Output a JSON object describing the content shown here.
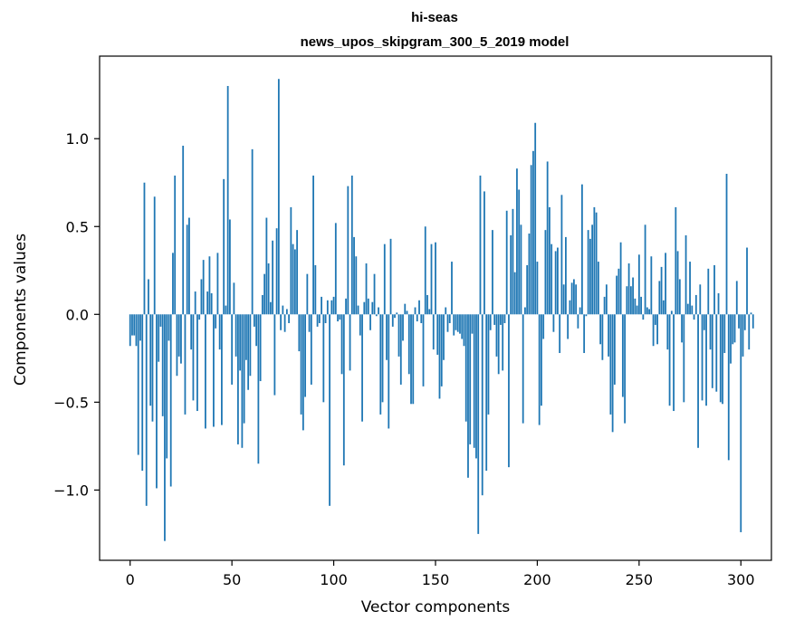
{
  "chart_data": {
    "type": "bar",
    "title_line1": "hi-seas",
    "title_line2": "news_upos_skipgram_300_5_2019 model",
    "xlabel": "Vector components",
    "ylabel": "Components values",
    "xlim": [
      -15,
      315
    ],
    "ylim": [
      -1.4,
      1.47
    ],
    "xticks": [
      0,
      50,
      100,
      150,
      200,
      250,
      300
    ],
    "xtick_labels": [
      "0",
      "50",
      "100",
      "150",
      "200",
      "250",
      "300"
    ],
    "yticks": [
      -1.0,
      -0.5,
      0.0,
      0.5,
      1.0
    ],
    "ytick_labels": [
      "−1.0",
      "−0.5",
      "0.0",
      "0.5",
      "1.0"
    ],
    "bar_color": "#1f77b4",
    "values": [
      -0.18,
      -0.12,
      -0.12,
      -0.18,
      -0.8,
      -0.15,
      -0.89,
      0.75,
      -1.09,
      0.2,
      -0.52,
      -0.61,
      0.67,
      -0.99,
      -0.27,
      -0.07,
      -0.58,
      -1.29,
      -0.82,
      -0.15,
      -0.98,
      0.35,
      0.79,
      -0.35,
      -0.24,
      -0.28,
      0.96,
      -0.57,
      0.51,
      0.55,
      -0.2,
      -0.49,
      0.13,
      -0.55,
      -0.03,
      0.2,
      0.31,
      -0.65,
      0.13,
      0.33,
      0.12,
      -0.64,
      -0.08,
      0.35,
      -0.2,
      -0.63,
      0.77,
      0.05,
      1.3,
      0.54,
      -0.4,
      0.18,
      -0.24,
      -0.74,
      -0.32,
      -0.76,
      -0.62,
      -0.26,
      -0.43,
      -0.35,
      0.94,
      -0.07,
      -0.18,
      -0.85,
      -0.38,
      0.11,
      0.23,
      0.55,
      0.29,
      0.07,
      0.42,
      -0.46,
      0.49,
      1.34,
      -0.09,
      0.05,
      -0.1,
      0.03,
      -0.05,
      0.61,
      0.4,
      0.37,
      0.48,
      -0.21,
      -0.57,
      -0.66,
      -0.47,
      0.23,
      -0.1,
      -0.4,
      0.79,
      0.28,
      -0.07,
      -0.05,
      0.1,
      -0.5,
      -0.05,
      0.08,
      -1.09,
      0.08,
      0.1,
      0.52,
      -0.04,
      -0.03,
      -0.34,
      -0.86,
      0.09,
      0.73,
      -0.32,
      0.79,
      0.44,
      0.33,
      0.05,
      -0.12,
      -0.61,
      0.07,
      0.29,
      0.09,
      -0.09,
      0.07,
      0.23,
      -0.01,
      0.04,
      -0.57,
      -0.5,
      0.4,
      -0.26,
      -0.65,
      0.43,
      -0.07,
      -0.02,
      0.01,
      -0.24,
      -0.4,
      -0.15,
      0.06,
      0.02,
      -0.34,
      -0.51,
      -0.51,
      0.04,
      -0.04,
      0.08,
      -0.05,
      -0.41,
      0.5,
      0.11,
      0.03,
      0.4,
      -0.2,
      0.41,
      -0.23,
      -0.48,
      -0.41,
      -0.26,
      0.04,
      -0.1,
      -0.05,
      0.3,
      -0.12,
      -0.09,
      -0.1,
      -0.11,
      -0.14,
      -0.18,
      -0.61,
      -0.93,
      -0.74,
      -0.11,
      -0.76,
      -0.82,
      -1.25,
      0.79,
      -1.03,
      0.7,
      -0.89,
      -0.57,
      -0.09,
      0.48,
      -0.06,
      -0.24,
      -0.34,
      -0.06,
      -0.32,
      -0.05,
      0.59,
      -0.87,
      0.45,
      0.6,
      0.24,
      0.83,
      0.71,
      0.51,
      -0.62,
      0.04,
      0.28,
      0.46,
      0.85,
      0.93,
      1.09,
      0.3,
      -0.63,
      -0.52,
      -0.14,
      0.48,
      0.87,
      0.61,
      0.4,
      -0.1,
      0.36,
      0.38,
      -0.22,
      0.68,
      0.17,
      0.44,
      -0.14,
      0.08,
      0.18,
      0.2,
      0.17,
      -0.08,
      0.04,
      0.74,
      -0.22,
      -0.01,
      0.48,
      0.43,
      0.51,
      0.61,
      0.58,
      0.3,
      -0.17,
      -0.26,
      0.1,
      0.17,
      -0.24,
      -0.57,
      -0.67,
      -0.4,
      0.22,
      0.26,
      0.41,
      -0.47,
      -0.62,
      0.16,
      0.29,
      0.16,
      0.21,
      0.09,
      0.05,
      0.34,
      0.1,
      -0.03,
      0.51,
      0.04,
      0.03,
      0.33,
      -0.18,
      -0.06,
      -0.17,
      0.19,
      0.27,
      0.08,
      0.35,
      -0.2,
      -0.52,
      0.02,
      -0.55,
      0.61,
      0.36,
      0.2,
      -0.16,
      -0.5,
      0.45,
      0.06,
      0.3,
      0.05,
      -0.03,
      0.11,
      -0.76,
      0.17,
      -0.49,
      -0.09,
      -0.52,
      0.26,
      -0.2,
      -0.42,
      0.28,
      -0.44,
      0.12,
      -0.5,
      -0.51,
      -0.22,
      0.8,
      -0.83,
      -0.28,
      -0.17,
      -0.16,
      0.19,
      -0.08,
      -1.24,
      -0.24,
      -0.09,
      0.38,
      -0.2,
      0.01,
      -0.08
    ]
  }
}
